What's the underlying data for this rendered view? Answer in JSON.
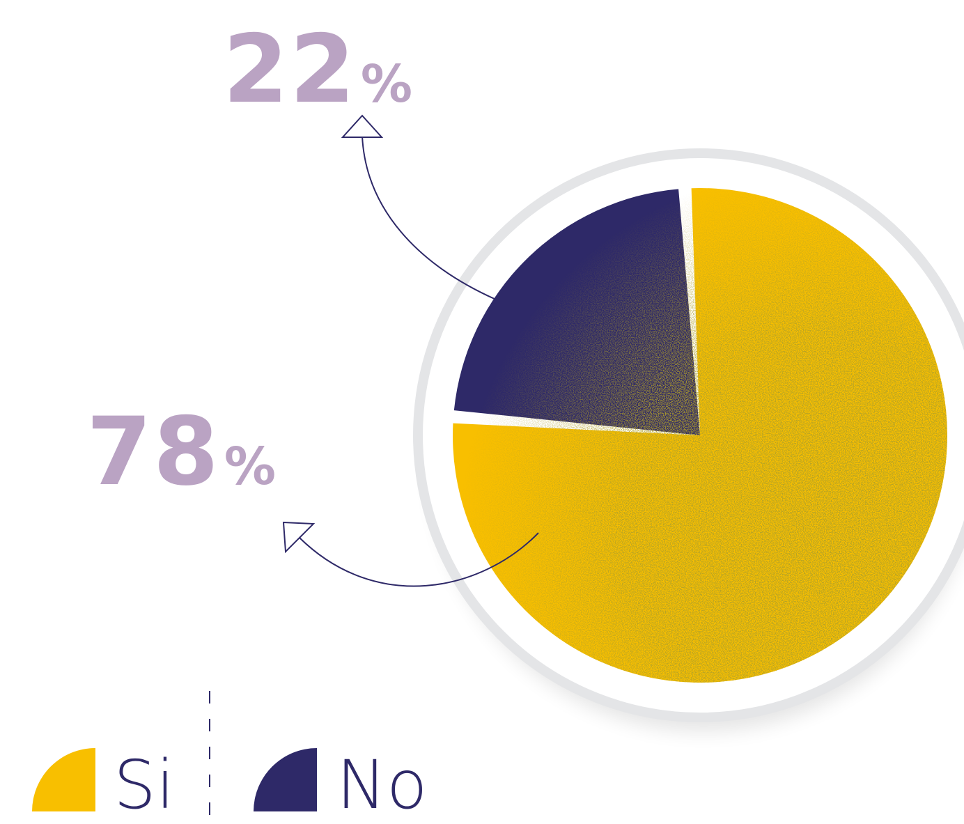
{
  "chart_data": {
    "type": "pie",
    "categories": [
      "Si",
      "No"
    ],
    "values": [
      78,
      22
    ],
    "slices": [
      {
        "label": "Si",
        "value": 78,
        "display": "78",
        "color": "#F8BF00"
      },
      {
        "label": "No",
        "value": 22,
        "display": "22",
        "color": "#2E2968"
      }
    ],
    "percent_sign": "%",
    "legend": [
      {
        "label": "Si",
        "color": "#F8BF00"
      },
      {
        "label": "No",
        "color": "#2E2968"
      }
    ],
    "legend_position": "bottom-left"
  },
  "colors": {
    "number_text": "#BAA3C3",
    "outline": "#E4E5E7",
    "arrow": "#2E2968",
    "dark_texture": "#8A6A00"
  }
}
